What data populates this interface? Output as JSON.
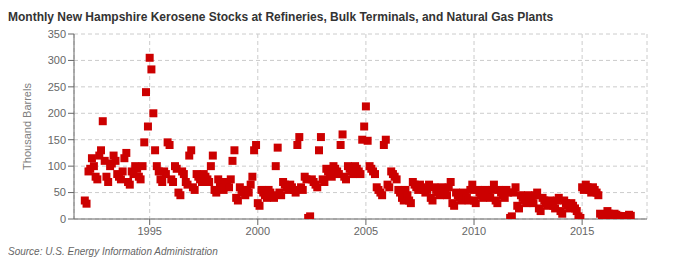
{
  "chart_data": {
    "type": "scatter",
    "title": "Monthly New Hampshire Kerosene Stocks at Refineries, Bulk Terminals, and Natural Gas Plants",
    "ylabel": "Thousand Barrels",
    "source": "Source: U.S. Energy Information Administration",
    "color": "#cc0000",
    "marker": "square",
    "grid": true,
    "xlim": [
      1991.5,
      2018.0
    ],
    "xticks": [
      1995,
      2000,
      2005,
      2010,
      2015
    ],
    "ylim": [
      0,
      350
    ],
    "yticks": [
      0,
      50,
      100,
      150,
      200,
      250,
      300,
      350
    ],
    "x": [
      1992.0,
      1992.08,
      1992.17,
      1992.25,
      1992.33,
      1992.42,
      1992.5,
      1992.58,
      1992.67,
      1992.75,
      1992.83,
      1992.92,
      1993.0,
      1993.08,
      1993.17,
      1993.25,
      1993.33,
      1993.42,
      1993.5,
      1993.58,
      1993.67,
      1993.75,
      1993.83,
      1993.92,
      1994.0,
      1994.08,
      1994.17,
      1994.25,
      1994.33,
      1994.42,
      1994.5,
      1994.58,
      1994.67,
      1994.75,
      1994.83,
      1994.92,
      1995.0,
      1995.08,
      1995.17,
      1995.25,
      1995.33,
      1995.42,
      1995.5,
      1995.58,
      1995.67,
      1995.75,
      1995.83,
      1995.92,
      1996.0,
      1996.08,
      1996.17,
      1996.25,
      1996.33,
      1996.42,
      1996.5,
      1996.58,
      1996.67,
      1996.75,
      1996.83,
      1996.92,
      1997.0,
      1997.08,
      1997.17,
      1997.25,
      1997.33,
      1997.42,
      1997.5,
      1997.58,
      1997.67,
      1997.75,
      1997.83,
      1997.92,
      1998.0,
      1998.08,
      1998.17,
      1998.25,
      1998.33,
      1998.42,
      1998.5,
      1998.58,
      1998.67,
      1998.75,
      1998.83,
      1998.92,
      1999.0,
      1999.08,
      1999.17,
      1999.25,
      1999.33,
      1999.42,
      1999.5,
      1999.58,
      1999.67,
      1999.75,
      1999.83,
      1999.92,
      2000.0,
      2000.08,
      2000.17,
      2000.25,
      2000.33,
      2000.42,
      2000.5,
      2000.58,
      2000.67,
      2000.75,
      2000.83,
      2000.92,
      2001.0,
      2001.08,
      2001.17,
      2001.25,
      2001.33,
      2001.42,
      2001.5,
      2001.58,
      2001.67,
      2001.75,
      2001.83,
      2001.92,
      2002.0,
      2002.08,
      2002.17,
      2002.25,
      2002.33,
      2002.42,
      2002.5,
      2002.58,
      2002.67,
      2002.75,
      2002.83,
      2002.92,
      2003.0,
      2003.08,
      2003.17,
      2003.25,
      2003.33,
      2003.42,
      2003.5,
      2003.58,
      2003.67,
      2003.75,
      2003.83,
      2003.92,
      2004.0,
      2004.08,
      2004.17,
      2004.25,
      2004.33,
      2004.42,
      2004.5,
      2004.58,
      2004.67,
      2004.75,
      2004.83,
      2004.92,
      2005.0,
      2005.08,
      2005.17,
      2005.25,
      2005.33,
      2005.42,
      2005.5,
      2005.58,
      2005.67,
      2005.75,
      2005.83,
      2005.92,
      2006.0,
      2006.08,
      2006.17,
      2006.25,
      2006.33,
      2006.42,
      2006.5,
      2006.58,
      2006.67,
      2006.75,
      2006.83,
      2006.92,
      2007.0,
      2007.08,
      2007.17,
      2007.25,
      2007.33,
      2007.42,
      2007.5,
      2007.58,
      2007.67,
      2007.75,
      2007.83,
      2007.92,
      2008.0,
      2008.08,
      2008.17,
      2008.25,
      2008.33,
      2008.42,
      2008.5,
      2008.58,
      2008.67,
      2008.75,
      2008.83,
      2008.92,
      2009.0,
      2009.08,
      2009.17,
      2009.25,
      2009.33,
      2009.42,
      2009.5,
      2009.58,
      2009.67,
      2009.75,
      2009.83,
      2009.92,
      2010.0,
      2010.08,
      2010.17,
      2010.25,
      2010.33,
      2010.42,
      2010.5,
      2010.58,
      2010.67,
      2010.75,
      2010.83,
      2010.92,
      2011.0,
      2011.08,
      2011.17,
      2011.25,
      2011.33,
      2011.42,
      2011.5,
      2011.58,
      2011.67,
      2011.75,
      2011.83,
      2011.92,
      2012.0,
      2012.08,
      2012.17,
      2012.25,
      2012.33,
      2012.42,
      2012.5,
      2012.58,
      2012.67,
      2012.75,
      2012.83,
      2012.92,
      2013.0,
      2013.08,
      2013.17,
      2013.25,
      2013.33,
      2013.42,
      2013.5,
      2013.58,
      2013.67,
      2013.75,
      2013.83,
      2013.92,
      2014.0,
      2014.08,
      2014.17,
      2014.25,
      2014.33,
      2014.42,
      2014.5,
      2014.58,
      2014.67,
      2014.75,
      2014.83,
      2014.92,
      2015.0,
      2015.08,
      2015.17,
      2015.25,
      2015.33,
      2015.42,
      2015.5,
      2015.58,
      2015.67,
      2015.75,
      2015.83,
      2015.92,
      2016.0,
      2016.08,
      2016.17,
      2016.25,
      2016.33,
      2016.42,
      2016.5,
      2016.58,
      2016.67,
      2016.75,
      2016.83,
      2016.92,
      2017.0,
      2017.08,
      2017.17,
      2017.25
    ],
    "values": [
      35,
      29,
      90,
      95,
      115,
      100,
      80,
      75,
      120,
      130,
      185,
      110,
      80,
      70,
      100,
      105,
      120,
      110,
      85,
      80,
      75,
      90,
      115,
      125,
      70,
      65,
      90,
      85,
      100,
      95,
      80,
      75,
      100,
      145,
      240,
      175,
      305,
      283,
      200,
      130,
      100,
      90,
      75,
      70,
      90,
      85,
      145,
      140,
      75,
      70,
      100,
      95,
      50,
      45,
      90,
      85,
      70,
      65,
      120,
      130,
      60,
      55,
      85,
      80,
      75,
      70,
      85,
      80,
      75,
      70,
      100,
      120,
      55,
      50,
      75,
      70,
      60,
      55,
      70,
      65,
      60,
      75,
      110,
      130,
      40,
      35,
      60,
      55,
      50,
      45,
      55,
      50,
      65,
      80,
      130,
      140,
      30,
      25,
      55,
      50,
      45,
      40,
      55,
      50,
      45,
      40,
      100,
      135,
      50,
      45,
      70,
      65,
      60,
      55,
      65,
      60,
      55,
      50,
      140,
      155,
      60,
      55,
      80,
      75,
      2,
      5,
      75,
      70,
      65,
      60,
      130,
      155,
      75,
      70,
      95,
      90,
      85,
      80,
      100,
      95,
      90,
      85,
      140,
      160,
      80,
      75,
      100,
      95,
      90,
      85,
      100,
      95,
      90,
      85,
      150,
      175,
      213,
      148,
      100,
      95,
      90,
      85,
      60,
      55,
      50,
      45,
      140,
      150,
      65,
      60,
      90,
      85,
      80,
      75,
      55,
      50,
      40,
      35,
      55,
      45,
      35,
      30,
      70,
      65,
      60,
      55,
      65,
      60,
      55,
      50,
      55,
      65,
      40,
      35,
      60,
      55,
      50,
      45,
      60,
      55,
      50,
      45,
      60,
      70,
      30,
      25,
      50,
      45,
      40,
      35,
      50,
      45,
      40,
      35,
      55,
      65,
      35,
      30,
      55,
      50,
      45,
      40,
      55,
      50,
      45,
      40,
      55,
      65,
      35,
      30,
      55,
      50,
      45,
      40,
      55,
      50,
      2,
      5,
      50,
      60,
      25,
      20,
      45,
      40,
      35,
      30,
      45,
      40,
      35,
      30,
      45,
      50,
      20,
      15,
      40,
      35,
      30,
      25,
      35,
      30,
      25,
      20,
      35,
      40,
      15,
      10,
      35,
      30,
      25,
      20,
      30,
      25,
      20,
      15,
      5,
      2,
      60,
      55,
      65,
      60,
      55,
      50,
      60,
      55,
      50,
      45,
      10,
      5,
      5,
      2,
      15,
      10,
      8,
      6,
      10,
      8,
      6,
      5,
      5,
      5,
      5,
      4,
      8,
      6
    ]
  }
}
